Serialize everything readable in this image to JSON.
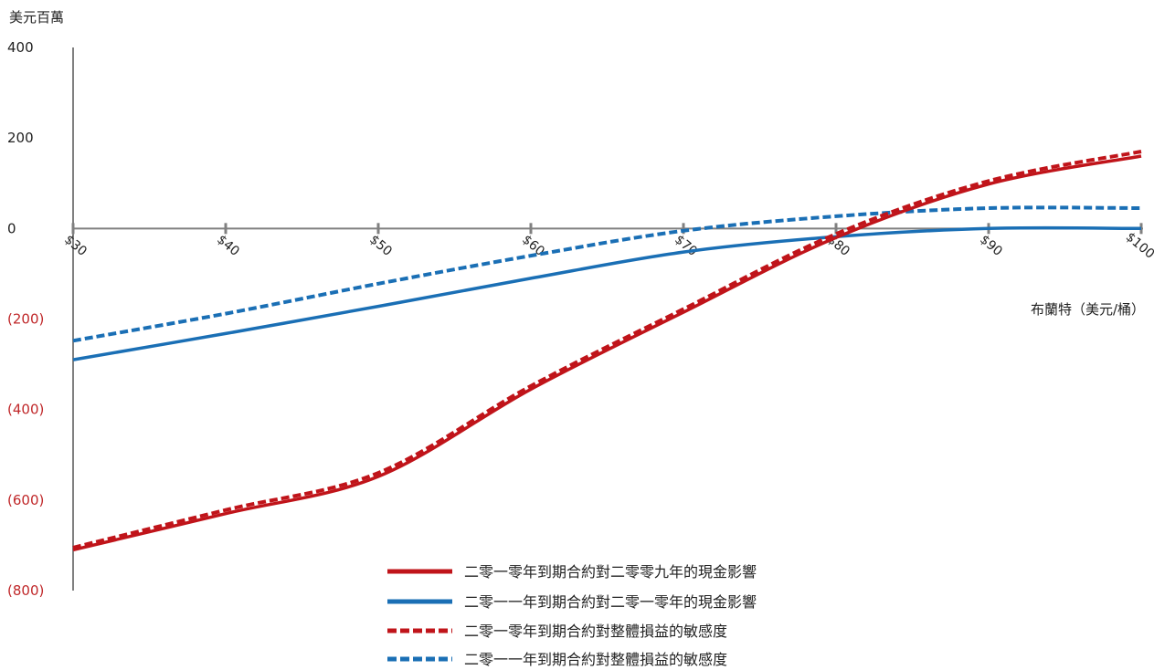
{
  "chart_data": {
    "type": "line",
    "title": "",
    "ylabel": "美元百萬",
    "xlabel": "布蘭特（美元/桶）",
    "x": [
      30,
      40,
      50,
      60,
      70,
      80,
      90,
      100
    ],
    "x_tick_labels": [
      "$30",
      "$40",
      "$50",
      "$60",
      "$70",
      "$80",
      "$90",
      "$100"
    ],
    "y_ticks": [
      400,
      200,
      0,
      -200,
      -400,
      -600,
      -800
    ],
    "y_tick_labels": [
      "400",
      "200",
      "0",
      "(200)",
      "(400)",
      "(600)",
      "(800)"
    ],
    "xlim": [
      30,
      100
    ],
    "ylim": [
      -800,
      400
    ],
    "grid": false,
    "legend_position": "bottom-center",
    "colors": {
      "red": "#c0141a",
      "blue": "#1a6fb5",
      "axis": "#808080",
      "negative_tick": "#c0282a"
    },
    "series": [
      {
        "name": "二零一零年到期合約對二零零九年的現金影響",
        "color": "#c0141a",
        "dash": false,
        "values": [
          -710,
          -630,
          -548,
          -355,
          -185,
          -20,
          98,
          160
        ]
      },
      {
        "name": "二零一一年到期合約對二零一零年的現金影響",
        "color": "#1a6fb5",
        "dash": false,
        "values": [
          -290,
          -232,
          -172,
          -110,
          -52,
          -18,
          0,
          0
        ]
      },
      {
        "name": "二零一零年到期合約對整體損益的敏感度",
        "color": "#c0141a",
        "dash": true,
        "values": [
          -705,
          -622,
          -540,
          -348,
          -178,
          -12,
          105,
          170
        ]
      },
      {
        "name": "二零一一年到期合約對整體損益的敏感度",
        "color": "#1a6fb5",
        "dash": true,
        "values": [
          -248,
          -188,
          -122,
          -60,
          -5,
          27,
          45,
          45
        ]
      }
    ]
  }
}
